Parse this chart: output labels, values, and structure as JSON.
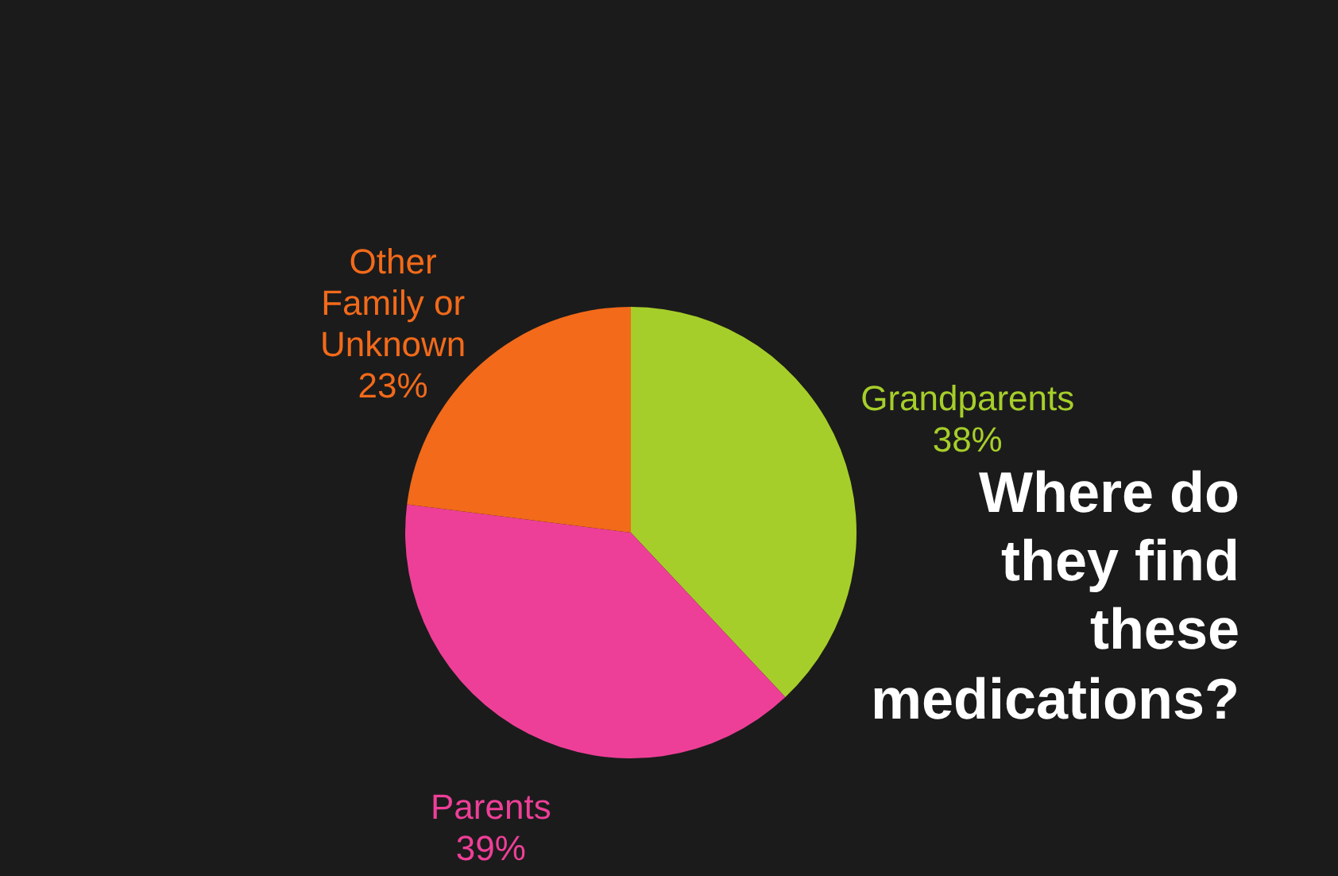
{
  "chart_data": {
    "type": "pie",
    "title": "Where do they find these medications?",
    "categories": [
      "Grandparents",
      "Parents",
      "Other Family or Unknown"
    ],
    "values": [
      38,
      39,
      23
    ],
    "value_labels": [
      "38%",
      "39%",
      "23%"
    ],
    "colors": [
      "#a6ce2a",
      "#ee3f98",
      "#f26a1a"
    ]
  }
}
